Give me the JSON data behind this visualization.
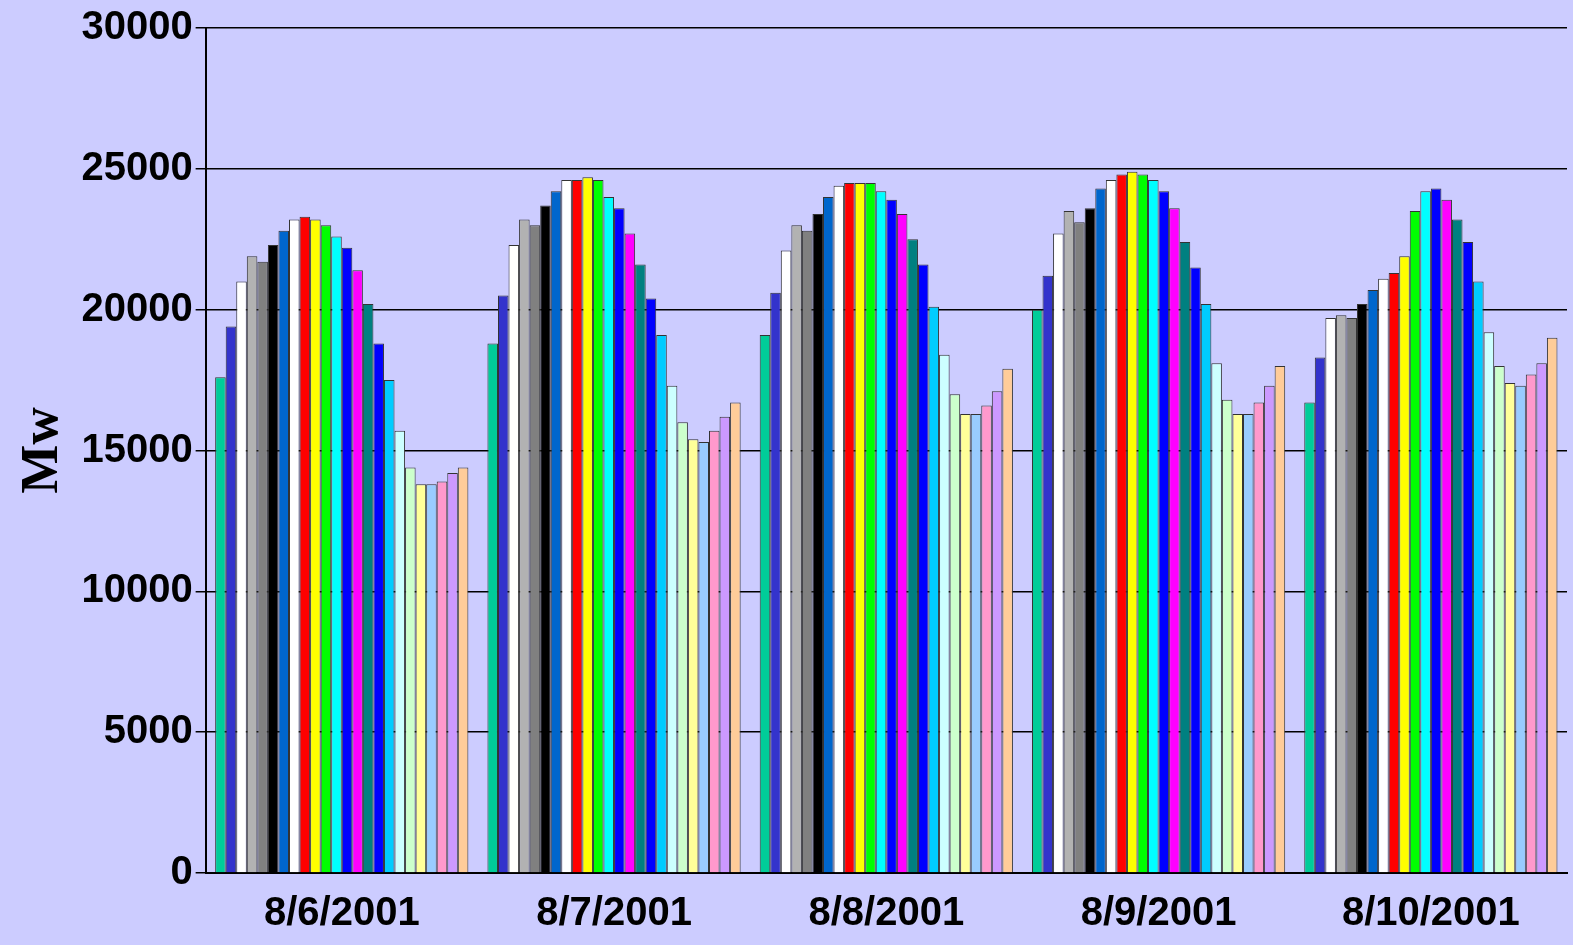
{
  "chart_data": {
    "type": "bar",
    "ylabel": "Mw",
    "categories": [
      "8/6/2001",
      "8/7/2001",
      "8/8/2001",
      "8/9/2001",
      "8/10/2001"
    ],
    "ylim": [
      0,
      30000
    ],
    "yticks": [
      0,
      5000,
      10000,
      15000,
      20000,
      25000,
      30000
    ],
    "grid": "y",
    "legend": false,
    "series": [
      {
        "color": "#00cc99",
        "values": [
          17600,
          18800,
          19100,
          20000,
          16700
        ]
      },
      {
        "color": "#3333cc",
        "values": [
          19400,
          20500,
          20600,
          21200,
          18300
        ]
      },
      {
        "color": "#ffffff",
        "values": [
          21000,
          22300,
          22100,
          22700,
          19700
        ]
      },
      {
        "color": "#b2b2b2",
        "values": [
          21900,
          23200,
          23000,
          23500,
          19800
        ]
      },
      {
        "color": "#808080",
        "values": [
          21700,
          23000,
          22800,
          23100,
          19700
        ]
      },
      {
        "color": "#000000",
        "values": [
          22300,
          23700,
          23400,
          23600,
          20200
        ]
      },
      {
        "color": "#0066cc",
        "values": [
          22800,
          24200,
          24000,
          24300,
          20700
        ]
      },
      {
        "color": "#ffffff",
        "values": [
          23200,
          24600,
          24400,
          24600,
          21100
        ]
      },
      {
        "color": "#ff0000",
        "values": [
          23300,
          24600,
          24500,
          24800,
          21300
        ]
      },
      {
        "color": "#ffff00",
        "values": [
          23200,
          24700,
          24500,
          24900,
          21900
        ]
      },
      {
        "color": "#00ff00",
        "values": [
          23000,
          24600,
          24500,
          24800,
          23500
        ]
      },
      {
        "color": "#00ffff",
        "values": [
          22600,
          24000,
          24200,
          24600,
          24200
        ]
      },
      {
        "color": "#0000ff",
        "values": [
          22200,
          23600,
          23900,
          24200,
          24300
        ]
      },
      {
        "color": "#ff00ff",
        "values": [
          21400,
          22700,
          23400,
          23600,
          23900
        ]
      },
      {
        "color": "#008080",
        "values": [
          20200,
          21600,
          22500,
          22400,
          23200
        ]
      },
      {
        "color": "#0000ff",
        "values": [
          18800,
          20400,
          21600,
          21500,
          22400
        ]
      },
      {
        "color": "#00ccff",
        "values": [
          17500,
          19100,
          20100,
          20200,
          21000
        ]
      },
      {
        "color": "#ccffff",
        "values": [
          15700,
          17300,
          18400,
          18100,
          19200
        ]
      },
      {
        "color": "#ccffcc",
        "values": [
          14400,
          16000,
          17000,
          16800,
          18000
        ]
      },
      {
        "color": "#ffff99",
        "values": [
          13800,
          15400,
          16300,
          16300,
          17400
        ]
      },
      {
        "color": "#99ccff",
        "values": [
          13800,
          15300,
          16300,
          16300,
          17300
        ]
      },
      {
        "color": "#ff99cc",
        "values": [
          13900,
          15700,
          16600,
          16700,
          17700
        ]
      },
      {
        "color": "#cc99ff",
        "values": [
          14200,
          16200,
          17100,
          17300,
          18100
        ]
      },
      {
        "color": "#ffcc99",
        "values": [
          14400,
          16700,
          17900,
          18000,
          19000
        ]
      }
    ]
  }
}
